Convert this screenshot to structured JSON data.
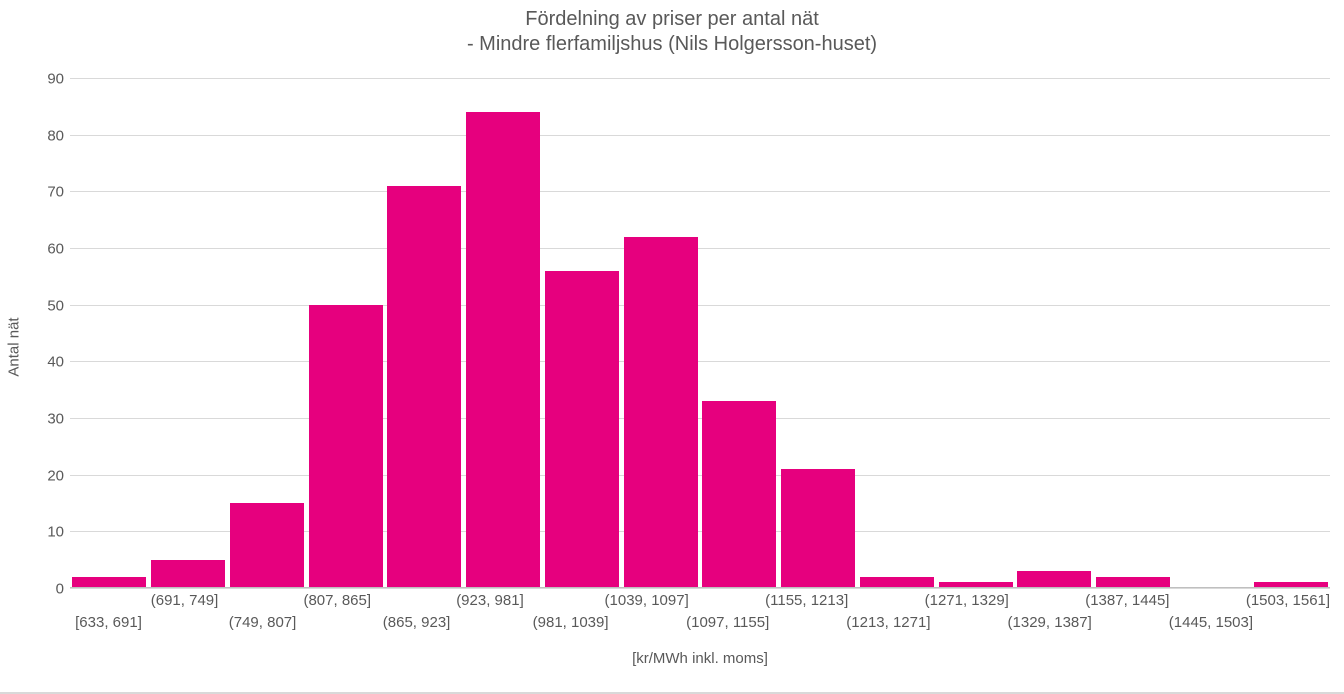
{
  "chart": {
    "type": "histogram",
    "title": "Fördelning av priser per antal nät",
    "subtitle": "- Mindre flerfamiljshus (Nils Holgersson-huset)",
    "y_axis_title": "Antal nät",
    "x_axis_title": "[kr/MWh inkl. moms]",
    "bar_color": "#e6007e",
    "background_color": "#ffffff",
    "grid_color": "#d9d9d9",
    "axis_line_color": "#bfbfbf",
    "text_color": "#595959",
    "title_fontsize": 20,
    "label_fontsize": 15,
    "bar_gap_ratio": 0.06,
    "ylim": [
      0,
      90
    ],
    "ytick_step": 10,
    "y_ticks": [
      0,
      10,
      20,
      30,
      40,
      50,
      60,
      70,
      80,
      90
    ],
    "categories": [
      "[633, 691]",
      "(691, 749]",
      "(749, 807]",
      "(807, 865]",
      "(865, 923]",
      "(923, 981]",
      "(981, 1039]",
      "(1039, 1097]",
      "(1097, 1155]",
      "(1155, 1213]",
      "(1213, 1271]",
      "(1271, 1329]",
      "(1329, 1387]",
      "(1387, 1445]",
      "(1445, 1503]",
      "(1503, 1561]"
    ],
    "values": [
      2,
      5,
      15,
      50,
      71,
      84,
      56,
      62,
      33,
      21,
      2,
      1,
      3,
      2,
      0,
      1
    ]
  }
}
